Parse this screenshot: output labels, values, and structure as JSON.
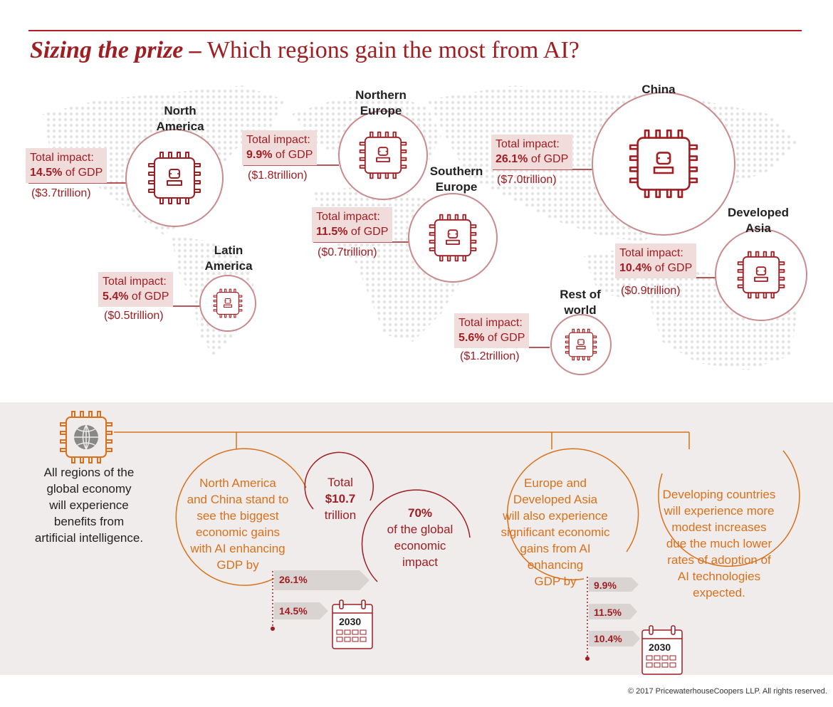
{
  "title": {
    "bold": "Sizing the prize –",
    "rest": " Which regions gain the most from AI?"
  },
  "impact_label": "Total impact:",
  "gdp_suffix": " of GDP",
  "regions": [
    {
      "name1": "North",
      "name2": "America",
      "percent": "14.5%",
      "value": "($3.7trillion)"
    },
    {
      "name1": "Northern",
      "name2": "Europe",
      "percent": "9.9%",
      "value": "($1.8trillion)"
    },
    {
      "name1": "Southern",
      "name2": "Europe",
      "percent": "11.5%",
      "value": "($0.7trillion)"
    },
    {
      "name1": "China",
      "name2": "",
      "percent": "26.1%",
      "value": "($7.0trillion)"
    },
    {
      "name1": "Developed",
      "name2": "Asia",
      "percent": "10.4%",
      "value": "($0.9trillion)"
    },
    {
      "name1": "Latin",
      "name2": "America",
      "percent": "5.4%",
      "value": "($0.5trillion)"
    },
    {
      "name1": "Rest of",
      "name2": "world",
      "percent": "5.6%",
      "value": "($1.2trillion)"
    }
  ],
  "summary": {
    "global": [
      "All regions of the",
      "global economy",
      "will experience",
      "benefits from",
      "artificial intelligence."
    ],
    "na_china": [
      "North America",
      "and China stand to",
      "see the biggest",
      "economic gains",
      "with AI enhancing",
      "GDP by"
    ],
    "total": [
      "Total",
      "$10.7",
      "trillion"
    ],
    "share": [
      "70%",
      "of the global",
      "economic",
      "impact"
    ],
    "europe_asia": [
      "Europe and",
      "Developed Asia",
      "will also experience",
      "significant economic",
      "gains from AI",
      "enhancing",
      "GDP by"
    ],
    "developing": [
      "Developing countries",
      "will experience more",
      "modest increases",
      "due the much lower",
      "rates of adoption of",
      "AI technologies",
      "expected."
    ],
    "na_china_values": [
      "26.1%",
      "14.5%"
    ],
    "europe_asia_values": [
      "9.9%",
      "11.5%",
      "10.4%"
    ],
    "year": "2030"
  },
  "copyright": "© 2017 PricewaterhouseCoopers LLP. All rights reserved.",
  "colors": {
    "red": "#a01d22",
    "orange": "#d9711b",
    "label_bg": "#f1dcdc",
    "panel_bg": "#efeceb",
    "map_dots": "#e4e4e4"
  }
}
